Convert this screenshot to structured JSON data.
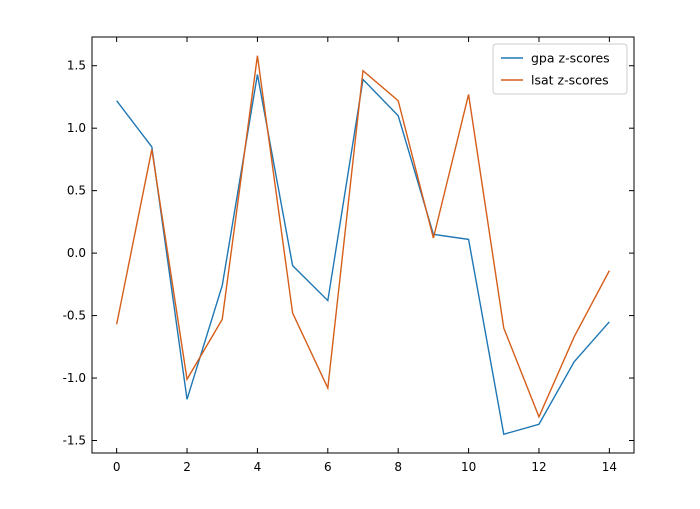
{
  "chart_data": {
    "type": "line",
    "title": "",
    "xlabel": "",
    "ylabel": "",
    "x": [
      0,
      1,
      2,
      3,
      4,
      5,
      6,
      7,
      8,
      9,
      10,
      11,
      12,
      13,
      14
    ],
    "xlim": [
      -0.7,
      14.7
    ],
    "ylim": [
      -1.6,
      1.73
    ],
    "xticks": [
      0,
      2,
      4,
      6,
      8,
      10,
      12,
      14
    ],
    "xtick_labels": [
      "0",
      "2",
      "4",
      "6",
      "8",
      "10",
      "12",
      "14"
    ],
    "yticks": [
      -1.5,
      -1.0,
      -0.5,
      0.0,
      0.5,
      1.0,
      1.5
    ],
    "ytick_labels": [
      "-1.5",
      "-1.0",
      "-0.5",
      "0.0",
      "0.5",
      "1.0",
      "1.5"
    ],
    "grid": false,
    "legend_position": "top-right",
    "series": [
      {
        "name": "gpa z-scores",
        "color": "#1f77b4",
        "values": [
          1.22,
          0.85,
          -1.17,
          -0.26,
          1.43,
          -0.1,
          -0.38,
          1.39,
          1.1,
          0.15,
          0.11,
          -1.45,
          -1.37,
          -0.87,
          -0.55
        ]
      },
      {
        "name": "lsat z-scores",
        "color": "#d55e1a",
        "values": [
          -0.57,
          0.83,
          -1.01,
          -0.53,
          1.58,
          -0.48,
          -1.08,
          1.46,
          1.22,
          0.12,
          1.27,
          -0.6,
          -1.31,
          -0.67,
          -0.14
        ]
      }
    ]
  }
}
